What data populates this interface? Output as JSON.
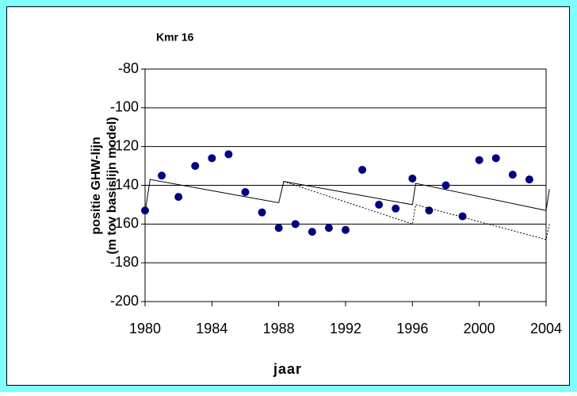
{
  "chart_data": {
    "type": "scatter",
    "title": "Kmr 16",
    "ylabel": [
      "positie GHW-lijn",
      "(m tov basislijn model)"
    ],
    "xlabel": "jaar",
    "xlim": [
      1980,
      2004
    ],
    "xticks": [
      1980,
      1984,
      1988,
      1992,
      1996,
      2000,
      2004
    ],
    "ylim": [
      -200,
      -80
    ],
    "yticks": [
      -200,
      -180,
      -160,
      -140,
      -120,
      -100,
      -80
    ],
    "grid": true,
    "series": [
      {
        "mode": "markers",
        "color": "#000080",
        "x": [
          1980,
          1981,
          1982,
          1983,
          1984,
          1985,
          1986,
          1987,
          1988,
          1989,
          1990,
          1991,
          1992,
          1993,
          1994,
          1995,
          1996,
          1997,
          1998,
          1999,
          2000,
          2001,
          2002,
          2003
        ],
        "values": [
          -153,
          -135,
          -146,
          -130,
          -126,
          -124,
          -143.5,
          -154,
          -162,
          -160,
          -164,
          -162,
          -163,
          -132,
          -150,
          -152,
          -136.5,
          -153,
          -140,
          -156,
          -127,
          -126,
          -134.5,
          -137
        ]
      },
      {
        "mode": "line",
        "dash": false,
        "color": "#000000",
        "x": [
          1980,
          1980.3,
          1988,
          1988.3,
          1996,
          1996.2,
          2004,
          2004.2
        ],
        "values": [
          -154,
          -137,
          -149,
          -138,
          -150,
          -139,
          -153,
          -142
        ]
      },
      {
        "mode": "line",
        "dash": true,
        "color": "#000000",
        "x": [
          1988.3,
          1996,
          1996.2,
          2004,
          2004.2
        ],
        "values": [
          -138,
          -160,
          -150,
          -168,
          -160
        ]
      }
    ]
  }
}
